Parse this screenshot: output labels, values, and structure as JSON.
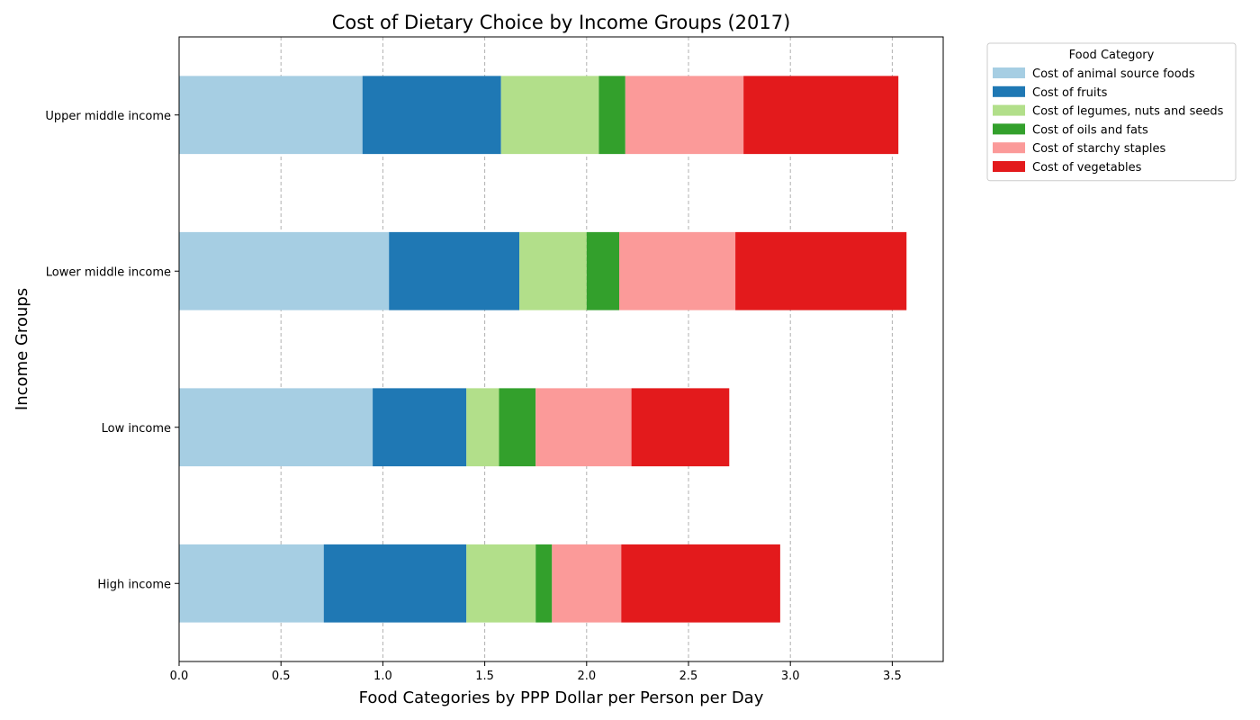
{
  "chart_data": {
    "type": "bar",
    "orientation": "horizontal",
    "stacked": true,
    "title": "Cost of Dietary Choice by Income Groups (2017)",
    "xlabel": "Food Categories by PPP Dollar per Person per Day",
    "ylabel": "Income Groups",
    "xlim": [
      0,
      3.75
    ],
    "xticks": [
      "0.0",
      "0.5",
      "1.0",
      "1.5",
      "2.0",
      "2.5",
      "3.0",
      "3.5"
    ],
    "xtick_values": [
      0,
      0.5,
      1.0,
      1.5,
      2.0,
      2.5,
      3.0,
      3.5
    ],
    "grid": "x-dashed",
    "legend_title": "Food Category",
    "legend_position": "outside-top-right",
    "categories": [
      "High income",
      "Low income",
      "Lower middle income",
      "Upper middle income"
    ],
    "series": [
      {
        "name": "Cost of animal source foods",
        "color": "#a6cee3",
        "values": [
          0.71,
          0.95,
          1.03,
          0.9
        ]
      },
      {
        "name": "Cost of fruits",
        "color": "#1f78b4",
        "values": [
          0.7,
          0.46,
          0.64,
          0.68
        ]
      },
      {
        "name": "Cost of legumes, nuts and seeds",
        "color": "#b2df8a",
        "values": [
          0.34,
          0.16,
          0.33,
          0.48
        ]
      },
      {
        "name": "Cost of oils and fats",
        "color": "#33a02c",
        "values": [
          0.08,
          0.18,
          0.16,
          0.13
        ]
      },
      {
        "name": "Cost of starchy staples",
        "color": "#fb9a99",
        "values": [
          0.34,
          0.47,
          0.57,
          0.58
        ]
      },
      {
        "name": "Cost of vegetables",
        "color": "#e31a1c",
        "values": [
          0.78,
          0.48,
          0.84,
          0.76
        ]
      }
    ]
  }
}
